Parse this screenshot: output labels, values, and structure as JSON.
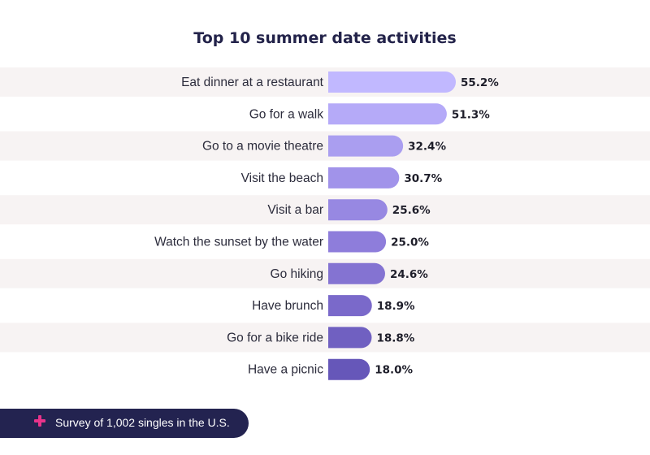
{
  "chart_data": {
    "type": "bar",
    "orientation": "horizontal",
    "title": "Top 10 summer date activities",
    "categories": [
      "Eat dinner at a restaurant",
      "Go for a walk",
      "Go to a movie theatre",
      "Visit the beach",
      "Visit a bar",
      "Watch the sunset by the water",
      "Go hiking",
      "Have brunch",
      "Go for a bike ride",
      "Have a picnic"
    ],
    "values": [
      55.2,
      51.3,
      32.4,
      30.7,
      25.6,
      25.0,
      24.6,
      18.9,
      18.8,
      18.0
    ],
    "value_labels": [
      "55.2%",
      "51.3%",
      "32.4%",
      "30.7%",
      "25.6%",
      "25.0%",
      "24.6%",
      "18.9%",
      "18.8%",
      "18.0%"
    ],
    "bar_colors": [
      "#c1b8ff",
      "#b5aaf8",
      "#aa9ef0",
      "#a193ea",
      "#9788e2",
      "#8e7ddb",
      "#8473d2",
      "#7a69ca",
      "#7060c1",
      "#6657b9"
    ],
    "row_band_color": "#f7f3f3",
    "grid": false
  },
  "footer": {
    "text": "Survey of 1,002 singles in the U.S.",
    "icon": "plus-icon",
    "accent_color": "#e8338a",
    "background_color": "#232350"
  }
}
